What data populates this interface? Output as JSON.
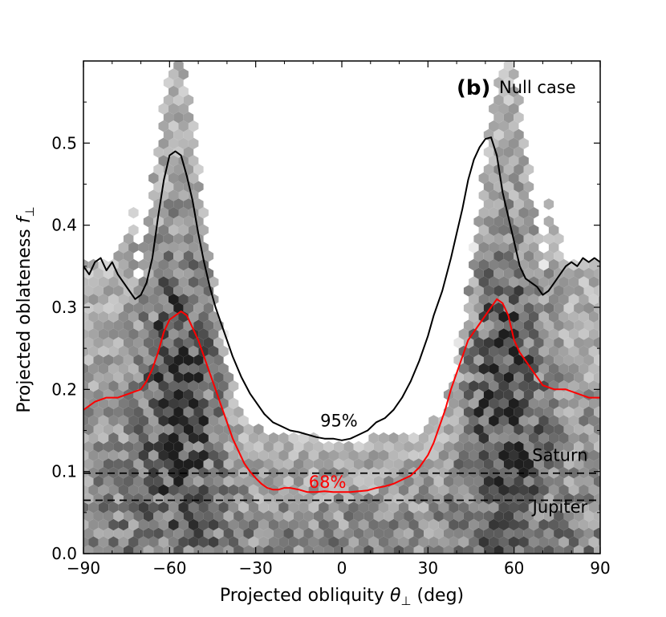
{
  "chart_data": {
    "type": "hexbin-density",
    "panel_label": "(b)",
    "title": "Null case",
    "xlabel_text": "Projected obliquity ",
    "xlabel_symbol": "θ",
    "xlabel_sub": "⊥",
    "xlabel_unit": " (deg)",
    "ylabel_text": "Projected oblateness ",
    "ylabel_symbol": "f",
    "ylabel_sub": "⊥",
    "xlim": [
      -90,
      90
    ],
    "ylim": [
      0.0,
      0.6
    ],
    "xticks": [
      -90,
      -60,
      -30,
      0,
      30,
      60,
      90
    ],
    "xtick_labels": [
      "−90",
      "−60",
      "−30",
      "0",
      "30",
      "60",
      "90"
    ],
    "yticks": [
      0.0,
      0.1,
      0.2,
      0.3,
      0.4,
      0.5
    ],
    "ytick_labels": [
      "0.0",
      "0.1",
      "0.2",
      "0.3",
      "0.4",
      "0.5"
    ],
    "series": [
      {
        "name": "95%",
        "color": "#000000",
        "label_at": [
          -1,
          0.155
        ],
        "x": [
          -90,
          -88,
          -86,
          -84,
          -82,
          -80,
          -78,
          -76,
          -74,
          -72,
          -70,
          -68,
          -66,
          -64,
          -62,
          -60,
          -58,
          -56,
          -54,
          -52,
          -50,
          -48,
          -46,
          -44,
          -42,
          -40,
          -38,
          -35,
          -32,
          -30,
          -27,
          -24,
          -21,
          -18,
          -15,
          -12,
          -9,
          -6,
          -3,
          0,
          3,
          6,
          9,
          12,
          15,
          18,
          21,
          24,
          27,
          30,
          32,
          35,
          38,
          40,
          42,
          44,
          46,
          48,
          50,
          52,
          54,
          56,
          58,
          60,
          62,
          64,
          66,
          68,
          70,
          72,
          74,
          76,
          78,
          80,
          82,
          84,
          86,
          88,
          90
        ],
        "y": [
          0.35,
          0.34,
          0.355,
          0.36,
          0.345,
          0.355,
          0.34,
          0.33,
          0.32,
          0.31,
          0.315,
          0.33,
          0.36,
          0.41,
          0.455,
          0.485,
          0.49,
          0.485,
          0.46,
          0.43,
          0.39,
          0.355,
          0.325,
          0.3,
          0.28,
          0.26,
          0.24,
          0.215,
          0.195,
          0.185,
          0.17,
          0.16,
          0.155,
          0.15,
          0.148,
          0.145,
          0.142,
          0.14,
          0.14,
          0.138,
          0.14,
          0.145,
          0.15,
          0.16,
          0.165,
          0.175,
          0.19,
          0.21,
          0.235,
          0.265,
          0.29,
          0.32,
          0.36,
          0.39,
          0.42,
          0.455,
          0.48,
          0.495,
          0.505,
          0.507,
          0.485,
          0.44,
          0.41,
          0.38,
          0.35,
          0.335,
          0.33,
          0.325,
          0.315,
          0.32,
          0.33,
          0.34,
          0.35,
          0.355,
          0.35,
          0.36,
          0.355,
          0.36,
          0.355
        ]
      },
      {
        "name": "68%",
        "color": "#ff0000",
        "label_at": [
          -5,
          0.08
        ],
        "x": [
          -90,
          -86,
          -82,
          -78,
          -74,
          -70,
          -68,
          -66,
          -64,
          -62,
          -60,
          -58,
          -56,
          -54,
          -52,
          -50,
          -48,
          -46,
          -44,
          -42,
          -40,
          -38,
          -36,
          -34,
          -32,
          -30,
          -28,
          -26,
          -24,
          -22,
          -20,
          -18,
          -15,
          -12,
          -9,
          -6,
          -3,
          0,
          3,
          6,
          9,
          12,
          15,
          18,
          21,
          24,
          27,
          30,
          32,
          34,
          36,
          38,
          40,
          42,
          44,
          46,
          48,
          50,
          52,
          54,
          56,
          58,
          60,
          62,
          64,
          66,
          68,
          70,
          74,
          78,
          82,
          86,
          90
        ],
        "y": [
          0.175,
          0.185,
          0.19,
          0.19,
          0.195,
          0.2,
          0.21,
          0.225,
          0.245,
          0.27,
          0.285,
          0.29,
          0.295,
          0.29,
          0.275,
          0.26,
          0.24,
          0.22,
          0.2,
          0.18,
          0.16,
          0.14,
          0.125,
          0.11,
          0.1,
          0.092,
          0.085,
          0.08,
          0.078,
          0.078,
          0.08,
          0.08,
          0.078,
          0.075,
          0.075,
          0.076,
          0.075,
          0.075,
          0.075,
          0.076,
          0.077,
          0.08,
          0.082,
          0.085,
          0.09,
          0.095,
          0.105,
          0.12,
          0.135,
          0.155,
          0.175,
          0.2,
          0.22,
          0.24,
          0.26,
          0.27,
          0.28,
          0.29,
          0.3,
          0.31,
          0.305,
          0.29,
          0.26,
          0.245,
          0.235,
          0.225,
          0.215,
          0.205,
          0.2,
          0.2,
          0.195,
          0.19,
          0.19
        ]
      }
    ],
    "reference_lines": [
      {
        "name": "Saturn",
        "y": 0.098,
        "style": "dashed",
        "label_at": [
          76,
          0.113
        ]
      },
      {
        "name": "Jupiter",
        "y": 0.065,
        "style": "dashed",
        "label_at": [
          76,
          0.05
        ]
      }
    ],
    "background": {
      "kind": "hexbin",
      "colormap": "greys",
      "description_peaks_deg": [
        -57,
        57
      ]
    }
  }
}
